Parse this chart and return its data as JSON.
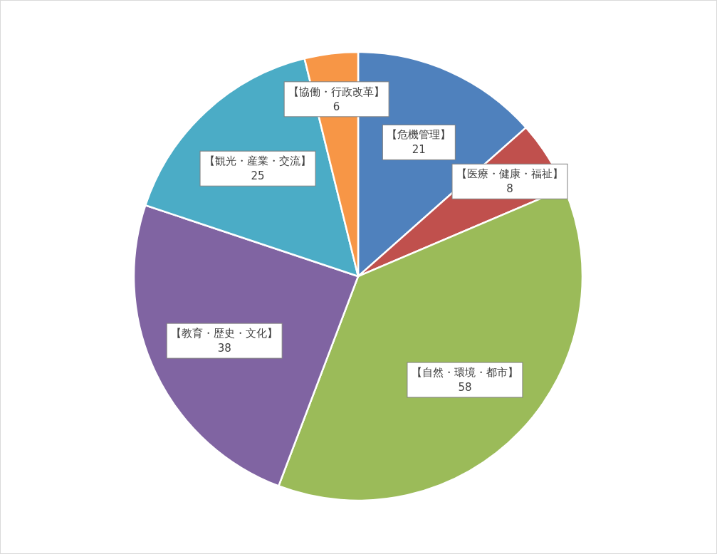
{
  "chart_data": {
    "type": "pie",
    "categories": [
      "【危機管理】",
      "【医療・健康・福祉】",
      "【自然・環境・都市】",
      "【教育・歴史・文化】",
      "【観光・産業・交流】",
      "【協働・行政改革】"
    ],
    "values": [
      21,
      8,
      58,
      38,
      25,
      6
    ],
    "colors": [
      "#4f81bd",
      "#c0504d",
      "#9bbb59",
      "#8064a2",
      "#4bacc6",
      "#f79646"
    ],
    "data_labels": true,
    "legend": false
  }
}
